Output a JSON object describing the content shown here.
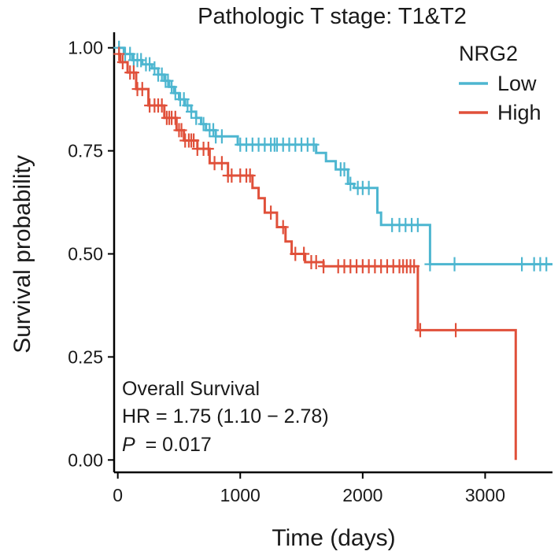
{
  "chart_data": {
    "type": "line",
    "subtype": "kaplan-meier",
    "title": "Pathologic T stage: T1&T2",
    "xlabel": "Time (days)",
    "ylabel": "Survival probability",
    "xlim": [
      -30,
      3550
    ],
    "ylim": [
      -0.03,
      1.03
    ],
    "xticks": [
      0,
      1000,
      2000,
      3000
    ],
    "xtick_labels": [
      "0",
      "1000",
      "2000",
      "3000"
    ],
    "yticks": [
      0,
      0.25,
      0.5,
      0.75,
      1
    ],
    "ytick_labels": [
      "0.00",
      "0.25",
      "0.50",
      "0.75",
      "1.00"
    ],
    "legend": {
      "title": "NRG2",
      "placement": "top-right",
      "entries": [
        "Low",
        "High"
      ]
    },
    "annotation": {
      "line1": "Overall Survival",
      "line2": "HR = 1.75 (1.10 − 2.78)",
      "p_label": "P",
      "p_value": "= 0.017"
    },
    "series": [
      {
        "name": "Low",
        "color": "#4db6d0",
        "steps": [
          [
            0,
            1.0
          ],
          [
            50,
            0.985
          ],
          [
            120,
            0.97
          ],
          [
            200,
            0.96
          ],
          [
            280,
            0.95
          ],
          [
            330,
            0.935
          ],
          [
            380,
            0.92
          ],
          [
            420,
            0.905
          ],
          [
            460,
            0.89
          ],
          [
            500,
            0.875
          ],
          [
            550,
            0.86
          ],
          [
            600,
            0.845
          ],
          [
            640,
            0.83
          ],
          [
            680,
            0.815
          ],
          [
            720,
            0.8
          ],
          [
            800,
            0.785
          ],
          [
            980,
            0.765
          ],
          [
            1620,
            0.745
          ],
          [
            1700,
            0.725
          ],
          [
            1780,
            0.705
          ],
          [
            1880,
            0.67
          ],
          [
            1930,
            0.66
          ],
          [
            2120,
            0.6
          ],
          [
            2150,
            0.57
          ],
          [
            2550,
            0.475
          ],
          [
            3550,
            0.475
          ]
        ],
        "censor_times": [
          10,
          60,
          100,
          130,
          160,
          190,
          230,
          260,
          300,
          330,
          360,
          390,
          410,
          440,
          470,
          510,
          540,
          570,
          600,
          640,
          700,
          750,
          780,
          800,
          850,
          1000,
          1050,
          1100,
          1150,
          1200,
          1250,
          1280,
          1300,
          1350,
          1400,
          1450,
          1500,
          1550,
          1600,
          1820,
          1850,
          1900,
          1960,
          2000,
          2050,
          2240,
          2300,
          2350,
          2400,
          2450,
          2550,
          2750,
          3300,
          3400,
          3450,
          3500
        ]
      },
      {
        "name": "High",
        "color": "#e0503a",
        "steps": [
          [
            0,
            0.985
          ],
          [
            20,
            0.965
          ],
          [
            80,
            0.94
          ],
          [
            150,
            0.9
          ],
          [
            250,
            0.86
          ],
          [
            380,
            0.83
          ],
          [
            480,
            0.8
          ],
          [
            540,
            0.775
          ],
          [
            650,
            0.755
          ],
          [
            750,
            0.72
          ],
          [
            900,
            0.69
          ],
          [
            1100,
            0.66
          ],
          [
            1150,
            0.635
          ],
          [
            1200,
            0.6
          ],
          [
            1300,
            0.565
          ],
          [
            1370,
            0.53
          ],
          [
            1420,
            0.5
          ],
          [
            1530,
            0.48
          ],
          [
            1680,
            0.47
          ],
          [
            2450,
            0.315
          ],
          [
            3250,
            0.315
          ],
          [
            3250,
            0.0
          ]
        ],
        "censor_times": [
          10,
          40,
          100,
          130,
          160,
          200,
          260,
          300,
          330,
          360,
          400,
          420,
          440,
          470,
          500,
          520,
          550,
          580,
          600,
          620,
          650,
          700,
          740,
          790,
          850,
          900,
          930,
          1000,
          1050,
          1080,
          1250,
          1350,
          1450,
          1520,
          1580,
          1620,
          1680,
          1800,
          1850,
          1900,
          1950,
          2000,
          2050,
          2100,
          2150,
          2200,
          2250,
          2300,
          2330,
          2360,
          2390,
          2420,
          2470,
          2760
        ]
      }
    ]
  }
}
